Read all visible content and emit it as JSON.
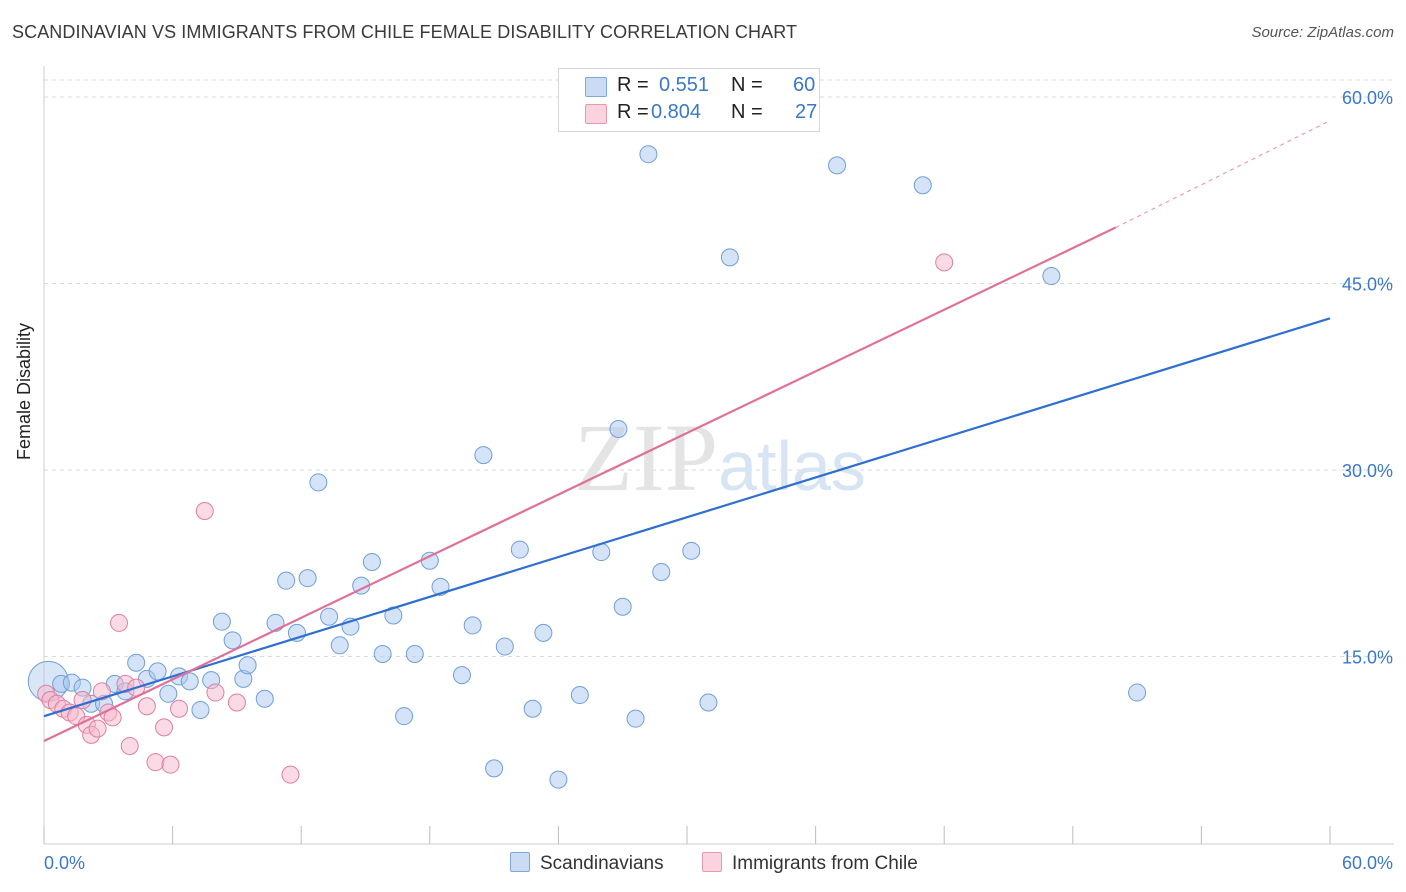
{
  "chart_data": {
    "type": "scatter",
    "title": "SCANDINAVIAN VS IMMIGRANTS FROM CHILE FEMALE DISABILITY CORRELATION CHART",
    "source": "Source: ZipAtlas.com",
    "ylabel": "Female Disability",
    "xlim": [
      0,
      60
    ],
    "ylim": [
      0,
      60
    ],
    "x_tick_labels": [
      "0.0%",
      "60.0%"
    ],
    "y_tick_labels": [
      "15.0%",
      "30.0%",
      "45.0%",
      "60.0%"
    ],
    "y_tick_values": [
      15,
      30,
      45,
      60
    ],
    "watermark": "ZIPatlas",
    "legend_stats": [
      {
        "r_label": "R =",
        "r_value": "0.551",
        "n_label": "N =",
        "n_value": "60",
        "color": "#a9c7ef"
      },
      {
        "r_label": "R =",
        "r_value": "0.804",
        "n_label": "N =",
        "n_value": "27",
        "color": "#f5b8cb"
      }
    ],
    "series": [
      {
        "name": "Scandinavians",
        "color": "#a9c7ef",
        "stroke": "#6f9fd8",
        "trend": {
          "x0": 0,
          "y0": 10.2,
          "x1": 60,
          "y1": 42.2,
          "color": "#2f6fd1"
        },
        "points": [
          [
            0.2,
            13
          ],
          [
            0.8,
            12.8
          ],
          [
            1.3,
            12.9
          ],
          [
            1.8,
            12.5
          ],
          [
            2.2,
            11.2
          ],
          [
            2.8,
            11.2
          ],
          [
            3.3,
            12.8
          ],
          [
            3.8,
            12.2
          ],
          [
            4.3,
            14.5
          ],
          [
            4.8,
            13.2
          ],
          [
            5.3,
            13.8
          ],
          [
            5.8,
            12
          ],
          [
            6.3,
            13.4
          ],
          [
            6.8,
            13
          ],
          [
            7.3,
            10.7
          ],
          [
            7.8,
            13.1
          ],
          [
            8.3,
            17.8
          ],
          [
            8.8,
            16.3
          ],
          [
            9.3,
            13.2
          ],
          [
            9.5,
            14.3
          ],
          [
            10.3,
            11.6
          ],
          [
            10.8,
            17.7
          ],
          [
            11.3,
            21.1
          ],
          [
            11.8,
            16.9
          ],
          [
            12.3,
            21.3
          ],
          [
            12.8,
            29
          ],
          [
            13.3,
            18.2
          ],
          [
            13.8,
            15.9
          ],
          [
            14.3,
            17.4
          ],
          [
            14.8,
            20.7
          ],
          [
            15.3,
            22.6
          ],
          [
            15.8,
            15.2
          ],
          [
            16.3,
            18.3
          ],
          [
            16.8,
            10.2
          ],
          [
            17.3,
            15.2
          ],
          [
            18,
            22.7
          ],
          [
            18.5,
            20.6
          ],
          [
            19.5,
            13.5
          ],
          [
            20,
            17.5
          ],
          [
            20.5,
            31.2
          ],
          [
            21,
            6
          ],
          [
            21.5,
            15.8
          ],
          [
            22.2,
            23.6
          ],
          [
            22.8,
            10.8
          ],
          [
            23.3,
            16.9
          ],
          [
            24,
            5.1
          ],
          [
            25,
            11.9
          ],
          [
            26,
            23.4
          ],
          [
            26.8,
            33.3
          ],
          [
            27,
            19
          ],
          [
            27.6,
            10
          ],
          [
            28.2,
            55.4
          ],
          [
            28.8,
            21.8
          ],
          [
            30.2,
            23.5
          ],
          [
            31,
            11.3
          ],
          [
            32,
            47.1
          ],
          [
            37,
            54.5
          ],
          [
            41,
            52.9
          ],
          [
            47,
            45.6
          ],
          [
            51,
            12.1
          ]
        ]
      },
      {
        "name": "Immigrants from Chile",
        "color": "#f5b8cb",
        "stroke": "#e07f9f",
        "trend": {
          "x0": 0,
          "y0": 8.2,
          "x1": 50,
          "y1": 49.5,
          "color": "#e07098",
          "dash_to": {
            "x": 60,
            "y": 58.1
          }
        },
        "points": [
          [
            0.1,
            12
          ],
          [
            0.3,
            11.5
          ],
          [
            0.6,
            11.2
          ],
          [
            0.9,
            10.8
          ],
          [
            1.2,
            10.5
          ],
          [
            1.5,
            10.2
          ],
          [
            1.8,
            11.5
          ],
          [
            2.0,
            9.5
          ],
          [
            2.2,
            8.7
          ],
          [
            2.5,
            9.2
          ],
          [
            2.7,
            12.2
          ],
          [
            3.0,
            10.5
          ],
          [
            3.2,
            10.1
          ],
          [
            3.5,
            17.7
          ],
          [
            3.8,
            12.8
          ],
          [
            4.0,
            7.8
          ],
          [
            4.3,
            12.5
          ],
          [
            4.8,
            11
          ],
          [
            5.2,
            6.5
          ],
          [
            5.6,
            9.3
          ],
          [
            5.9,
            6.3
          ],
          [
            6.3,
            10.8
          ],
          [
            7.5,
            26.7
          ],
          [
            9.0,
            11.3
          ],
          [
            11.5,
            5.5
          ],
          [
            42,
            46.7
          ],
          [
            8.0,
            12.1
          ]
        ]
      }
    ]
  }
}
